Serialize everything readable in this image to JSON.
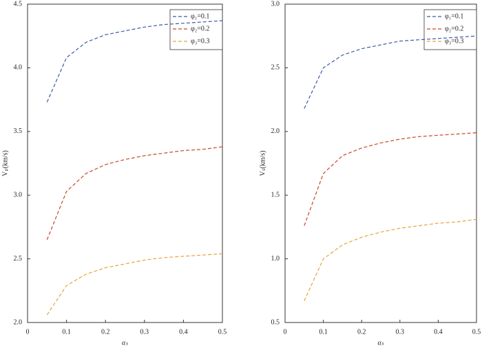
{
  "chart_data": [
    {
      "type": "line",
      "xlabel": "αₛ",
      "ylabel": "Vₚ(km/s)",
      "x": [
        0.05,
        0.1,
        0.15,
        0.2,
        0.25,
        0.3,
        0.35,
        0.4,
        0.45,
        0.5
      ],
      "xlim": [
        0,
        0.5
      ],
      "xticks": [
        0,
        0.1,
        0.2,
        0.3,
        0.4,
        0.5
      ],
      "ylim": [
        2.0,
        4.5
      ],
      "yticks": [
        {
          "value": 2.0,
          "label": "2.0"
        },
        2.5,
        {
          "value": 3.0,
          "label": "3.0"
        },
        3.5,
        {
          "value": 4.0,
          "label": "4.0"
        },
        4.5
      ],
      "legend": "upper right",
      "series": [
        {
          "name": "φ₁=0.1",
          "color": "#3b5ba5",
          "values": [
            3.73,
            4.08,
            4.2,
            4.26,
            4.29,
            4.32,
            4.34,
            4.35,
            4.36,
            4.37
          ]
        },
        {
          "name": "φ₂=0.2",
          "color": "#c8462a",
          "values": [
            2.65,
            3.03,
            3.17,
            3.24,
            3.28,
            3.31,
            3.33,
            3.35,
            3.36,
            3.38
          ]
        },
        {
          "name": "φ₃=0.3",
          "color": "#e8a23a",
          "values": [
            2.06,
            2.29,
            2.38,
            2.43,
            2.46,
            2.49,
            2.51,
            2.52,
            2.53,
            2.54
          ]
        }
      ]
    },
    {
      "type": "line",
      "xlabel": "αₛ",
      "ylabel": "Vₛ(km/s)",
      "x": [
        0.05,
        0.1,
        0.15,
        0.2,
        0.25,
        0.3,
        0.35,
        0.4,
        0.45,
        0.5
      ],
      "xlim": [
        0,
        0.5
      ],
      "xticks": [
        0,
        0.1,
        0.2,
        0.3,
        0.4,
        0.5
      ],
      "ylim": [
        0.5,
        3.0
      ],
      "yticks": [
        0.5,
        {
          "value": 1.0,
          "label": "1.0"
        },
        1.5,
        {
          "value": 2.0,
          "label": "2.0"
        },
        2.5,
        {
          "value": 3.0,
          "label": "3.0"
        }
      ],
      "legend": "upper right",
      "series": [
        {
          "name": "φ₁=0.1",
          "color": "#3b5ba5",
          "values": [
            2.18,
            2.5,
            2.6,
            2.65,
            2.68,
            2.71,
            2.72,
            2.73,
            2.74,
            2.75
          ]
        },
        {
          "name": "φ₂=0.2",
          "color": "#c8462a",
          "values": [
            1.26,
            1.67,
            1.81,
            1.87,
            1.91,
            1.94,
            1.96,
            1.97,
            1.98,
            1.99
          ]
        },
        {
          "name": "φ₃=0.3",
          "color": "#e8a23a",
          "values": [
            0.67,
            1.0,
            1.11,
            1.17,
            1.21,
            1.24,
            1.26,
            1.28,
            1.29,
            1.31
          ]
        }
      ]
    }
  ]
}
